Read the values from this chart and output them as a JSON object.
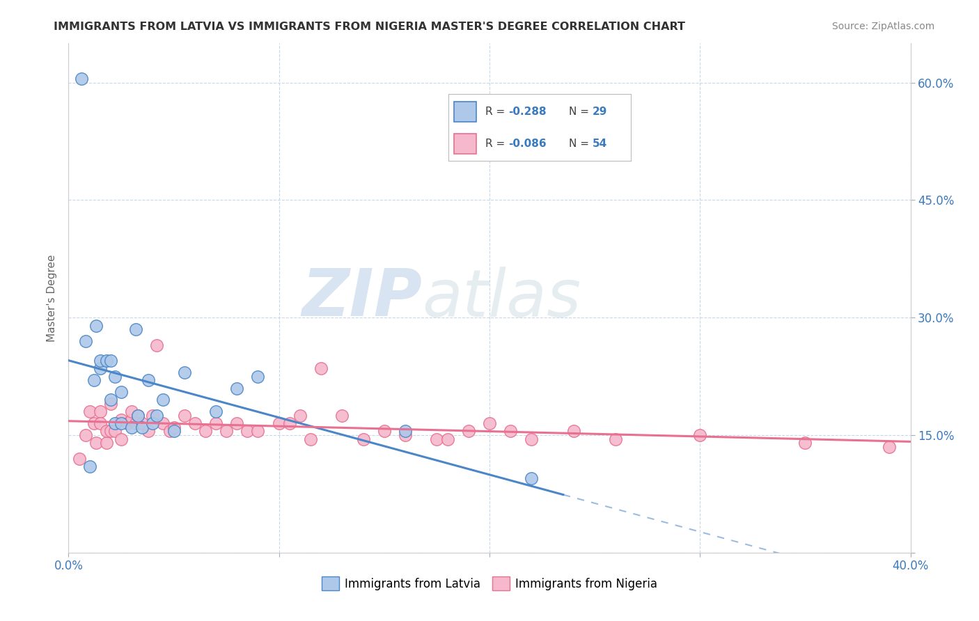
{
  "title": "IMMIGRANTS FROM LATVIA VS IMMIGRANTS FROM NIGERIA MASTER'S DEGREE CORRELATION CHART",
  "source_text": "Source: ZipAtlas.com",
  "ylabel": "Master's Degree",
  "xlim": [
    0.0,
    0.4
  ],
  "ylim": [
    0.0,
    0.65
  ],
  "xticks": [
    0.0,
    0.1,
    0.2,
    0.3,
    0.4
  ],
  "xtick_labels": [
    "0.0%",
    "",
    "",
    "",
    "40.0%"
  ],
  "yticks": [
    0.0,
    0.15,
    0.3,
    0.45,
    0.6
  ],
  "left_ytick_labels": [
    "",
    "",
    "",
    "",
    ""
  ],
  "right_ytick_labels": [
    "",
    "15.0%",
    "30.0%",
    "45.0%",
    "60.0%"
  ],
  "latvia_R": -0.288,
  "latvia_N": 29,
  "nigeria_R": -0.086,
  "nigeria_N": 54,
  "latvia_color": "#adc8e8",
  "latvia_line_color": "#4a86c8",
  "latvia_edge_color": "#4a86c8",
  "nigeria_color": "#f5b8cc",
  "nigeria_line_color": "#e87090",
  "nigeria_edge_color": "#e87090",
  "watermark_zip": "ZIP",
  "watermark_atlas": "atlas",
  "legend_text_color": "#404040",
  "legend_value_color": "#3a7abf",
  "background_color": "#ffffff",
  "grid_color": "#c8d8e8",
  "title_color": "#333333",
  "tick_label_color": "#3a7abf",
  "latvia_x": [
    0.006,
    0.008,
    0.01,
    0.012,
    0.013,
    0.015,
    0.015,
    0.018,
    0.02,
    0.02,
    0.022,
    0.022,
    0.025,
    0.025,
    0.03,
    0.032,
    0.033,
    0.035,
    0.038,
    0.04,
    0.042,
    0.045,
    0.05,
    0.055,
    0.07,
    0.08,
    0.09,
    0.16,
    0.22
  ],
  "latvia_y": [
    0.605,
    0.27,
    0.11,
    0.22,
    0.29,
    0.235,
    0.245,
    0.245,
    0.245,
    0.195,
    0.225,
    0.165,
    0.205,
    0.165,
    0.16,
    0.285,
    0.175,
    0.16,
    0.22,
    0.165,
    0.175,
    0.195,
    0.155,
    0.23,
    0.18,
    0.21,
    0.225,
    0.155,
    0.095
  ],
  "nigeria_x": [
    0.005,
    0.008,
    0.01,
    0.012,
    0.013,
    0.015,
    0.015,
    0.018,
    0.018,
    0.02,
    0.02,
    0.022,
    0.025,
    0.025,
    0.028,
    0.03,
    0.03,
    0.032,
    0.033,
    0.035,
    0.038,
    0.04,
    0.042,
    0.045,
    0.048,
    0.05,
    0.055,
    0.06,
    0.065,
    0.07,
    0.075,
    0.08,
    0.085,
    0.09,
    0.1,
    0.105,
    0.11,
    0.115,
    0.12,
    0.13,
    0.14,
    0.15,
    0.16,
    0.175,
    0.18,
    0.19,
    0.2,
    0.21,
    0.22,
    0.24,
    0.26,
    0.3,
    0.35,
    0.39
  ],
  "nigeria_y": [
    0.12,
    0.15,
    0.18,
    0.165,
    0.14,
    0.18,
    0.165,
    0.14,
    0.155,
    0.19,
    0.155,
    0.155,
    0.145,
    0.17,
    0.165,
    0.17,
    0.18,
    0.165,
    0.175,
    0.165,
    0.155,
    0.175,
    0.265,
    0.165,
    0.155,
    0.16,
    0.175,
    0.165,
    0.155,
    0.165,
    0.155,
    0.165,
    0.155,
    0.155,
    0.165,
    0.165,
    0.175,
    0.145,
    0.235,
    0.175,
    0.145,
    0.155,
    0.15,
    0.145,
    0.145,
    0.155,
    0.165,
    0.155,
    0.145,
    0.155,
    0.145,
    0.15,
    0.14,
    0.135
  ]
}
